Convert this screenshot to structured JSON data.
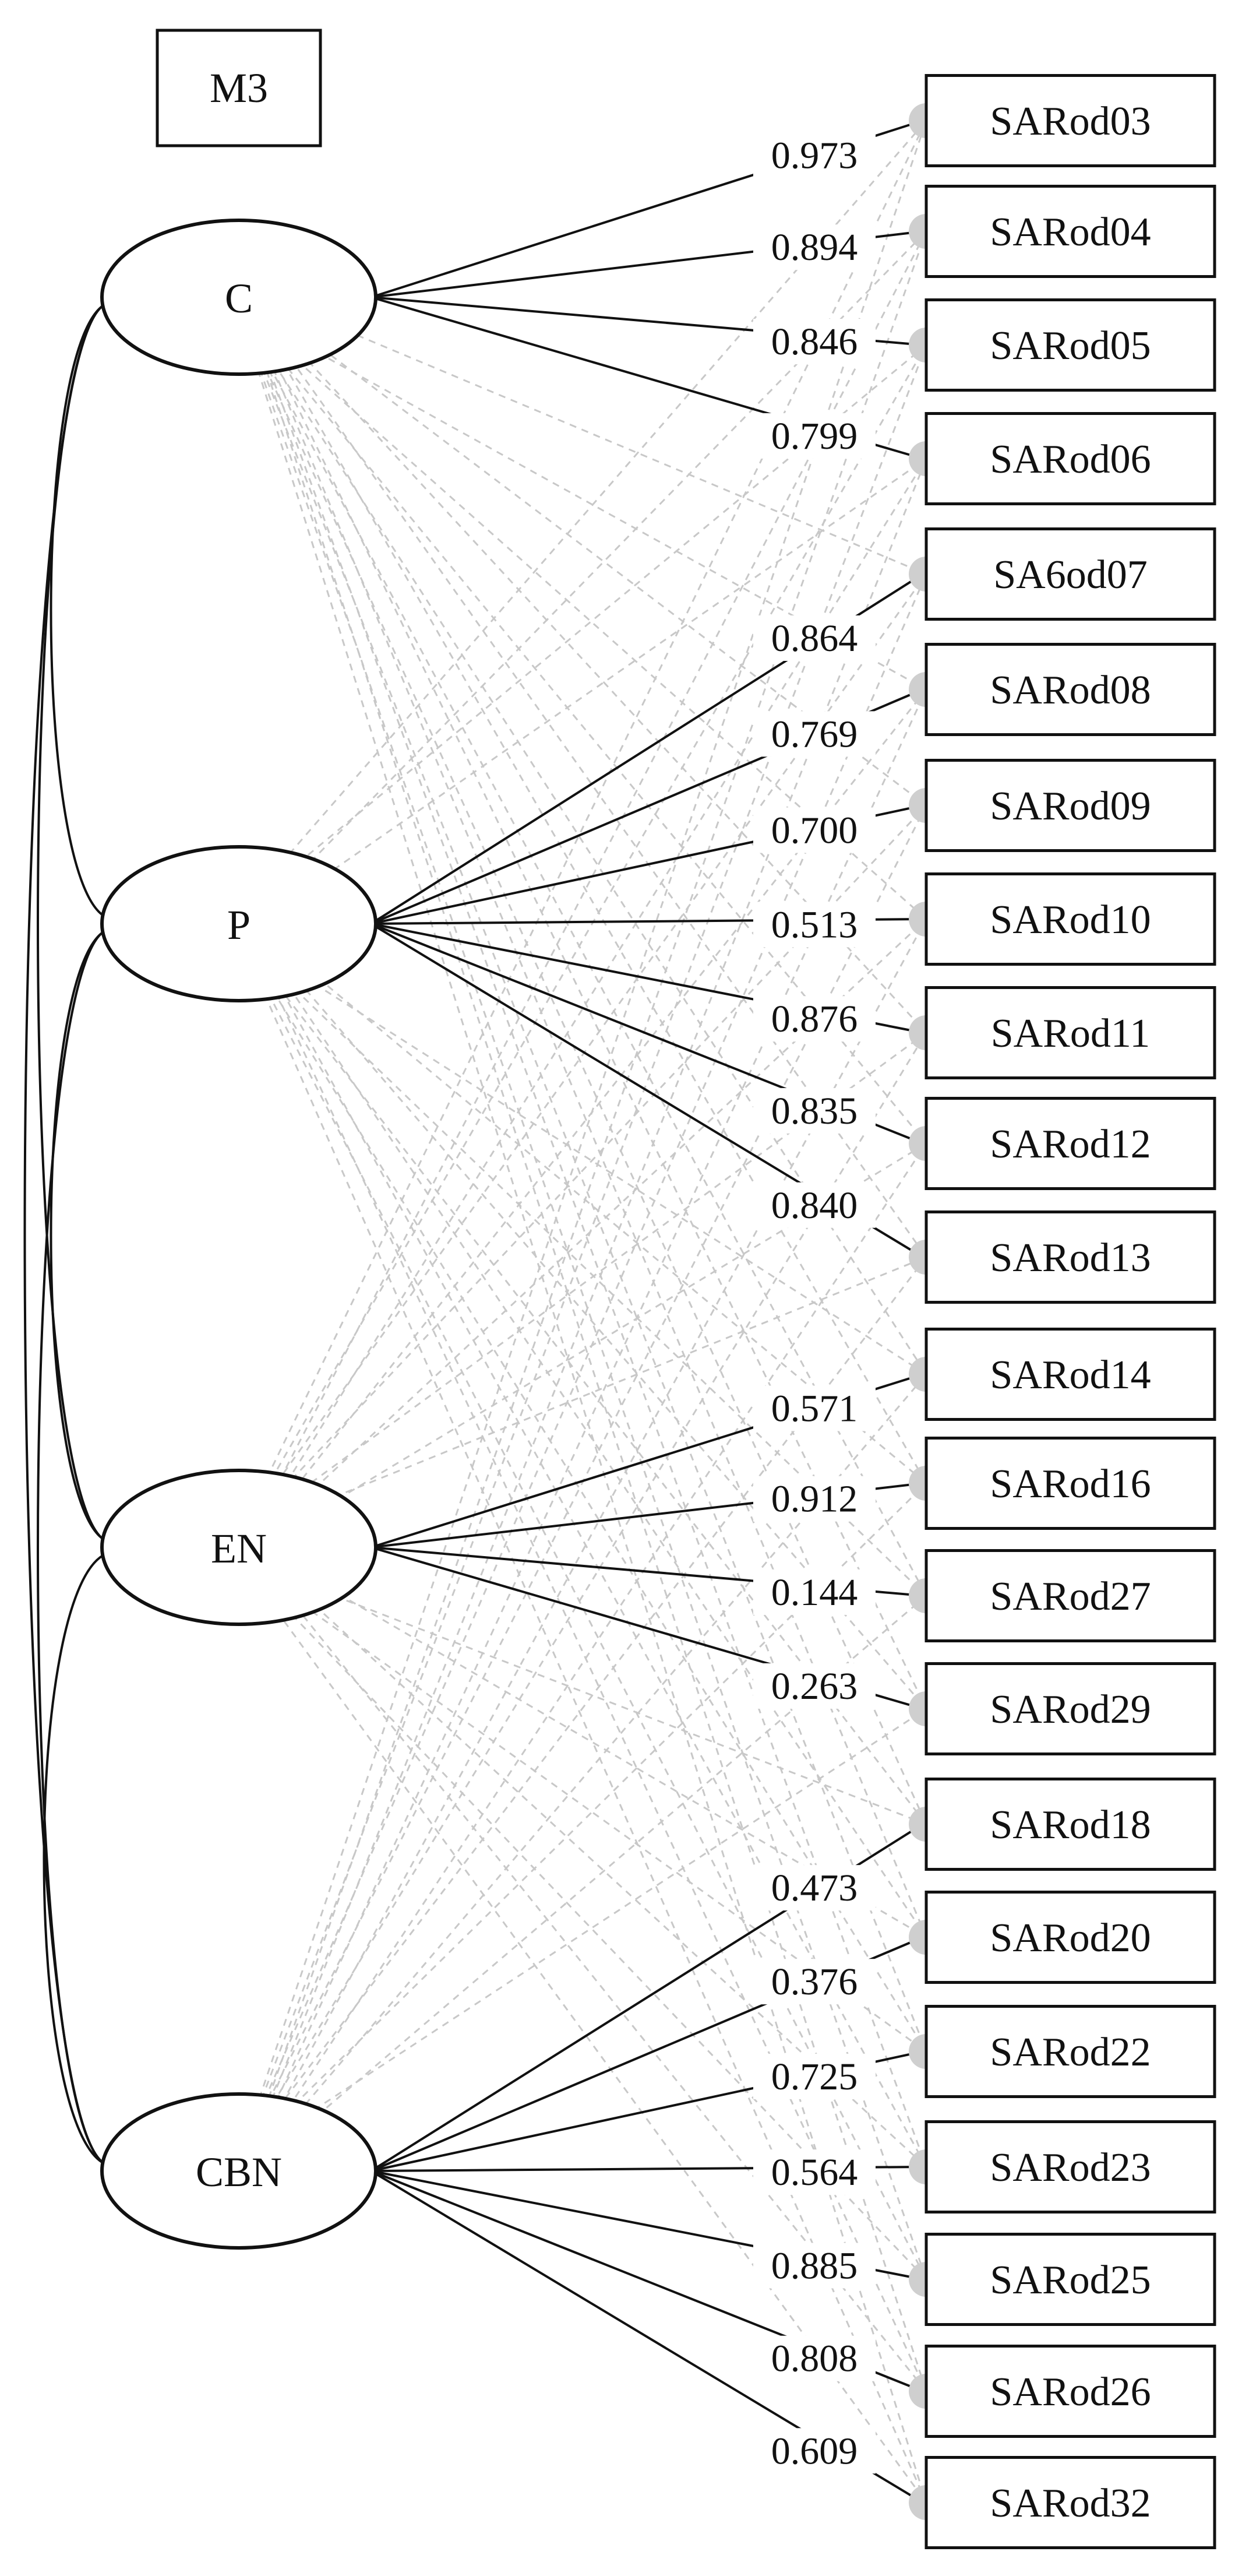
{
  "model_label": "M3",
  "colors": {
    "stroke": "#111111",
    "cross_line": "#c8c8c8",
    "error_mark": "#cfcfcf"
  },
  "latents": [
    {
      "id": "C",
      "label": "C"
    },
    {
      "id": "P",
      "label": "P"
    },
    {
      "id": "EN",
      "label": "EN"
    },
    {
      "id": "CBN",
      "label": "CBN"
    }
  ],
  "indicators": [
    {
      "label": "SARod03",
      "factor": "C",
      "loading": "0.973"
    },
    {
      "label": "SARod04",
      "factor": "C",
      "loading": "0.894"
    },
    {
      "label": "SARod05",
      "factor": "C",
      "loading": "0.846"
    },
    {
      "label": "SARod06",
      "factor": "C",
      "loading": "0.799"
    },
    {
      "label": "SA6od07",
      "factor": "P",
      "loading": "0.864"
    },
    {
      "label": "SARod08",
      "factor": "P",
      "loading": "0.769"
    },
    {
      "label": "SARod09",
      "factor": "P",
      "loading": "0.700"
    },
    {
      "label": "SARod10",
      "factor": "P",
      "loading": "0.513"
    },
    {
      "label": "SARod11",
      "factor": "P",
      "loading": "0.876"
    },
    {
      "label": "SARod12",
      "factor": "P",
      "loading": "0.835"
    },
    {
      "label": "SARod13",
      "factor": "P",
      "loading": "0.840"
    },
    {
      "label": "SARod14",
      "factor": "EN",
      "loading": "0.571"
    },
    {
      "label": "SARod16",
      "factor": "EN",
      "loading": "0.912"
    },
    {
      "label": "SARod27",
      "factor": "EN",
      "loading": "0.144"
    },
    {
      "label": "SARod29",
      "factor": "EN",
      "loading": "0.263"
    },
    {
      "label": "SARod18",
      "factor": "CBN",
      "loading": "0.473"
    },
    {
      "label": "SARod20",
      "factor": "CBN",
      "loading": "0.376"
    },
    {
      "label": "SARod22",
      "factor": "CBN",
      "loading": "0.725"
    },
    {
      "label": "SARod23",
      "factor": "CBN",
      "loading": "0.564"
    },
    {
      "label": "SARod25",
      "factor": "CBN",
      "loading": "0.885"
    },
    {
      "label": "SARod26",
      "factor": "CBN",
      "loading": "0.808"
    },
    {
      "label": "SARod32",
      "factor": "CBN",
      "loading": "0.609"
    }
  ]
}
